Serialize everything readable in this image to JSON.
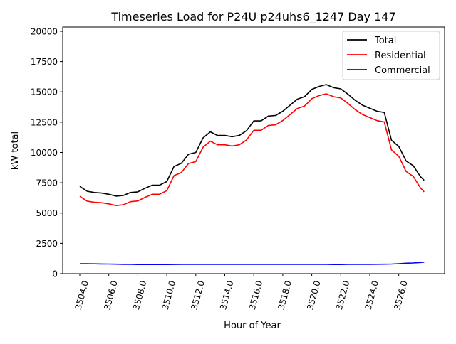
{
  "chart_data": {
    "type": "line",
    "title": "Timeseries Load for P24U p24uhs6_1247  Day 147",
    "xlabel": "Hour of Year",
    "ylabel": "kW total",
    "xlim": [
      3502.82,
      3529.16
    ],
    "ylim": [
      0,
      20350
    ],
    "xticks": [
      3504,
      3506,
      3508,
      3510,
      3512,
      3514,
      3516,
      3518,
      3520,
      3522,
      3524,
      3526
    ],
    "xtick_labels": [
      "3504.0",
      "3506.0",
      "3508.0",
      "3510.0",
      "3512.0",
      "3514.0",
      "3516.0",
      "3518.0",
      "3520.0",
      "3522.0",
      "3524.0",
      "3526.0"
    ],
    "yticks": [
      0,
      2500,
      5000,
      7500,
      10000,
      12500,
      15000,
      17500,
      20000
    ],
    "ytick_labels": [
      "0",
      "2500",
      "5000",
      "7500",
      "10000",
      "12500",
      "15000",
      "17500",
      "20000"
    ],
    "grid": false,
    "legend_position": "top-right",
    "x": [
      3504,
      3504.5,
      3505,
      3505.5,
      3506,
      3506.5,
      3507,
      3507.5,
      3508,
      3508.5,
      3509,
      3509.5,
      3510,
      3510.5,
      3511,
      3511.5,
      3512,
      3512.5,
      3513,
      3513.5,
      3514,
      3514.5,
      3515,
      3515.5,
      3516,
      3516.5,
      3517,
      3517.5,
      3518,
      3518.5,
      3519,
      3519.5,
      3520,
      3520.5,
      3521,
      3521.5,
      3522,
      3522.5,
      3523,
      3523.5,
      3524,
      3524.5,
      3525,
      3525.5,
      3526,
      3526.5,
      3527,
      3527.5,
      3527.75
    ],
    "series": [
      {
        "name": "Total",
        "color": "#000000",
        "values": [
          7200,
          6800,
          6700,
          6650,
          6550,
          6400,
          6450,
          6700,
          6750,
          7050,
          7300,
          7300,
          7600,
          8850,
          9100,
          9850,
          10000,
          11200,
          11700,
          11400,
          11400,
          11300,
          11400,
          11800,
          12600,
          12600,
          13000,
          13050,
          13400,
          13900,
          14400,
          14600,
          15200,
          15450,
          15600,
          15350,
          15250,
          14800,
          14300,
          13900,
          13650,
          13400,
          13300,
          11000,
          10500,
          9300,
          8900,
          8000,
          7700
        ]
      },
      {
        "name": "Residential",
        "color": "#ff0000",
        "values": [
          6380,
          5985,
          5890,
          5850,
          5760,
          5620,
          5680,
          5940,
          6000,
          6300,
          6550,
          6550,
          6850,
          8095,
          8340,
          9090,
          9240,
          10435,
          10930,
          10630,
          10630,
          10530,
          10630,
          11030,
          11830,
          11830,
          12230,
          12280,
          12630,
          13130,
          13630,
          13830,
          14430,
          14690,
          14840,
          14600,
          14500,
          14040,
          13530,
          13130,
          12880,
          12625,
          12520,
          10210,
          9680,
          8440,
          8020,
          7080,
          6750
        ]
      },
      {
        "name": "Commercial",
        "color": "#0000ff",
        "values": [
          820,
          815,
          810,
          800,
          790,
          780,
          770,
          760,
          750,
          750,
          750,
          750,
          750,
          755,
          760,
          760,
          760,
          765,
          770,
          770,
          770,
          770,
          770,
          770,
          770,
          770,
          770,
          770,
          770,
          770,
          770,
          770,
          770,
          760,
          760,
          750,
          750,
          760,
          770,
          770,
          770,
          775,
          780,
          790,
          820,
          860,
          880,
          920,
          950
        ]
      }
    ]
  }
}
